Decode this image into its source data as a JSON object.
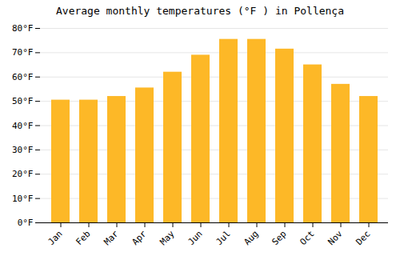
{
  "chart_data": {
    "type": "bar",
    "title": "Average monthly temperatures (°F ) in Pollença",
    "categories": [
      "Jan",
      "Feb",
      "Mar",
      "Apr",
      "May",
      "Jun",
      "Jul",
      "Aug",
      "Sep",
      "Oct",
      "Nov",
      "Dec"
    ],
    "values": [
      50.5,
      50.5,
      52.0,
      55.5,
      62.0,
      69.0,
      75.5,
      75.5,
      71.5,
      65.0,
      57.0,
      52.0
    ],
    "color": "#FDB827",
    "ylim": [
      0,
      80
    ],
    "yticks": [
      {
        "value": 0,
        "label": "0°F"
      },
      {
        "value": 10,
        "label": "10°F"
      },
      {
        "value": 20,
        "label": "20°F"
      },
      {
        "value": 30,
        "label": "30°F"
      },
      {
        "value": 40,
        "label": "40°F"
      },
      {
        "value": 50,
        "label": "50°F"
      },
      {
        "value": 60,
        "label": "60°F"
      },
      {
        "value": 70,
        "label": "70°F"
      },
      {
        "value": 80,
        "label": "80°F"
      }
    ],
    "grid": true
  }
}
